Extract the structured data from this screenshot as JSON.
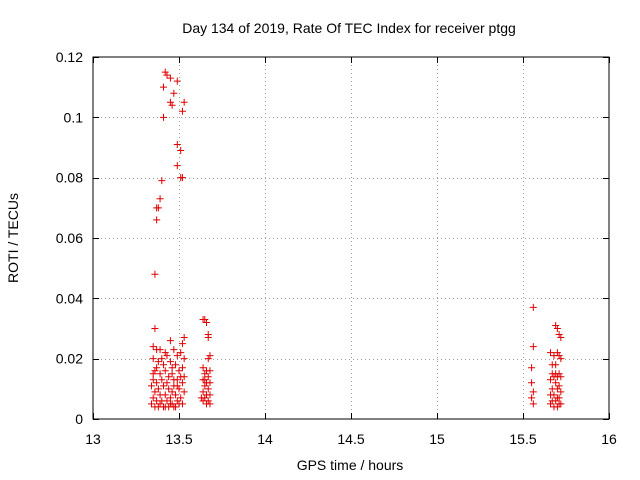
{
  "chart_data": {
    "type": "scatter",
    "title": "Day 134 of 2019, Rate Of TEC Index for receiver ptgg",
    "xlabel": "GPS time / hours",
    "ylabel": "ROTI / TECUs",
    "xlim": [
      13,
      16
    ],
    "ylim": [
      0,
      0.12
    ],
    "x_ticks": [
      13,
      13.5,
      14,
      14.5,
      15,
      15.5,
      16
    ],
    "x_tick_labels": [
      "13",
      "13.5",
      "14",
      "14.5",
      "15",
      "15.5",
      "16"
    ],
    "y_ticks": [
      0,
      0.02,
      0.04,
      0.06,
      0.08,
      0.1,
      0.12
    ],
    "y_tick_labels": [
      "0",
      "0.02",
      "0.04",
      "0.06",
      "0.08",
      "0.1",
      "0.12"
    ],
    "grid": true,
    "marker": "plus",
    "color": "#e00000",
    "series": [
      {
        "name": "ROTI",
        "points": [
          [
            13.42,
            0.115
          ],
          [
            13.43,
            0.114
          ],
          [
            13.45,
            0.113
          ],
          [
            13.49,
            0.112
          ],
          [
            13.41,
            0.11
          ],
          [
            13.47,
            0.108
          ],
          [
            13.45,
            0.105
          ],
          [
            13.46,
            0.104
          ],
          [
            13.53,
            0.105
          ],
          [
            13.52,
            0.102
          ],
          [
            13.41,
            0.1
          ],
          [
            13.49,
            0.091
          ],
          [
            13.51,
            0.089
          ],
          [
            13.49,
            0.084
          ],
          [
            13.51,
            0.08
          ],
          [
            13.52,
            0.08
          ],
          [
            13.4,
            0.079
          ],
          [
            13.39,
            0.073
          ],
          [
            13.38,
            0.07
          ],
          [
            13.37,
            0.07
          ],
          [
            13.37,
            0.066
          ],
          [
            13.36,
            0.048
          ],
          [
            13.36,
            0.03
          ],
          [
            13.45,
            0.026
          ],
          [
            13.35,
            0.024
          ],
          [
            13.37,
            0.023
          ],
          [
            13.39,
            0.023
          ],
          [
            13.47,
            0.023
          ],
          [
            13.51,
            0.022
          ],
          [
            13.53,
            0.027
          ],
          [
            13.52,
            0.025
          ],
          [
            13.49,
            0.021
          ],
          [
            13.43,
            0.021
          ],
          [
            13.35,
            0.02
          ],
          [
            13.38,
            0.019
          ],
          [
            13.41,
            0.018
          ],
          [
            13.45,
            0.019
          ],
          [
            13.48,
            0.018
          ],
          [
            13.52,
            0.017
          ],
          [
            13.36,
            0.016
          ],
          [
            13.39,
            0.015
          ],
          [
            13.42,
            0.016
          ],
          [
            13.46,
            0.015
          ],
          [
            13.5,
            0.016
          ],
          [
            13.53,
            0.014
          ],
          [
            13.35,
            0.013
          ],
          [
            13.37,
            0.012
          ],
          [
            13.4,
            0.013
          ],
          [
            13.43,
            0.012
          ],
          [
            13.47,
            0.013
          ],
          [
            13.49,
            0.011
          ],
          [
            13.52,
            0.012
          ],
          [
            13.34,
            0.011
          ],
          [
            13.38,
            0.01
          ],
          [
            13.41,
            0.011
          ],
          [
            13.44,
            0.01
          ],
          [
            13.46,
            0.009
          ],
          [
            13.5,
            0.01
          ],
          [
            13.53,
            0.009
          ],
          [
            13.36,
            0.009
          ],
          [
            13.39,
            0.008
          ],
          [
            13.42,
            0.008
          ],
          [
            13.45,
            0.007
          ],
          [
            13.48,
            0.008
          ],
          [
            13.51,
            0.007
          ],
          [
            13.35,
            0.007
          ],
          [
            13.37,
            0.006
          ],
          [
            13.4,
            0.006
          ],
          [
            13.43,
            0.006
          ],
          [
            13.46,
            0.005
          ],
          [
            13.49,
            0.006
          ],
          [
            13.52,
            0.005
          ],
          [
            13.34,
            0.005
          ],
          [
            13.38,
            0.004
          ],
          [
            13.41,
            0.004
          ],
          [
            13.44,
            0.004
          ],
          [
            13.47,
            0.004
          ],
          [
            13.5,
            0.005
          ],
          [
            13.36,
            0.004
          ],
          [
            13.39,
            0.005
          ],
          [
            13.42,
            0.004
          ],
          [
            13.45,
            0.005
          ],
          [
            13.48,
            0.004
          ],
          [
            13.35,
            0.015
          ],
          [
            13.4,
            0.02
          ],
          [
            13.44,
            0.014
          ],
          [
            13.47,
            0.011
          ],
          [
            13.51,
            0.014
          ],
          [
            13.53,
            0.02
          ],
          [
            13.37,
            0.017
          ],
          [
            13.42,
            0.022
          ],
          [
            13.46,
            0.017
          ],
          [
            13.49,
            0.013
          ],
          [
            13.64,
            0.033
          ],
          [
            13.65,
            0.033
          ],
          [
            13.66,
            0.032
          ],
          [
            13.67,
            0.028
          ],
          [
            13.67,
            0.027
          ],
          [
            13.68,
            0.021
          ],
          [
            13.67,
            0.02
          ],
          [
            13.64,
            0.017
          ],
          [
            13.66,
            0.016
          ],
          [
            13.68,
            0.016
          ],
          [
            13.65,
            0.015
          ],
          [
            13.67,
            0.014
          ],
          [
            13.64,
            0.013
          ],
          [
            13.66,
            0.012
          ],
          [
            13.68,
            0.012
          ],
          [
            13.65,
            0.011
          ],
          [
            13.67,
            0.01
          ],
          [
            13.64,
            0.009
          ],
          [
            13.66,
            0.008
          ],
          [
            13.68,
            0.008
          ],
          [
            13.65,
            0.007
          ],
          [
            13.67,
            0.006
          ],
          [
            13.64,
            0.006
          ],
          [
            13.66,
            0.005
          ],
          [
            13.68,
            0.005
          ],
          [
            13.63,
            0.007
          ],
          [
            13.65,
            0.013
          ],
          [
            15.56,
            0.037
          ],
          [
            15.56,
            0.024
          ],
          [
            15.55,
            0.017
          ],
          [
            15.55,
            0.012
          ],
          [
            15.56,
            0.009
          ],
          [
            15.55,
            0.007
          ],
          [
            15.56,
            0.005
          ],
          [
            15.66,
            0.022
          ],
          [
            15.68,
            0.021
          ],
          [
            15.7,
            0.022
          ],
          [
            15.69,
            0.031
          ],
          [
            15.7,
            0.03
          ],
          [
            15.71,
            0.028
          ],
          [
            15.72,
            0.027
          ],
          [
            15.71,
            0.021
          ],
          [
            15.67,
            0.015
          ],
          [
            15.68,
            0.014
          ],
          [
            15.69,
            0.015
          ],
          [
            15.7,
            0.014
          ],
          [
            15.71,
            0.015
          ],
          [
            15.72,
            0.014
          ],
          [
            15.66,
            0.013
          ],
          [
            15.69,
            0.012
          ],
          [
            15.71,
            0.011
          ],
          [
            15.67,
            0.01
          ],
          [
            15.7,
            0.01
          ],
          [
            15.72,
            0.009
          ],
          [
            15.66,
            0.008
          ],
          [
            15.68,
            0.008
          ],
          [
            15.7,
            0.007
          ],
          [
            15.71,
            0.007
          ],
          [
            15.67,
            0.006
          ],
          [
            15.69,
            0.006
          ],
          [
            15.72,
            0.005
          ],
          [
            15.66,
            0.005
          ],
          [
            15.68,
            0.004
          ],
          [
            15.7,
            0.004
          ],
          [
            15.71,
            0.005
          ],
          [
            15.69,
            0.018
          ],
          [
            15.72,
            0.02
          ],
          [
            15.67,
            0.018
          ]
        ]
      }
    ]
  }
}
